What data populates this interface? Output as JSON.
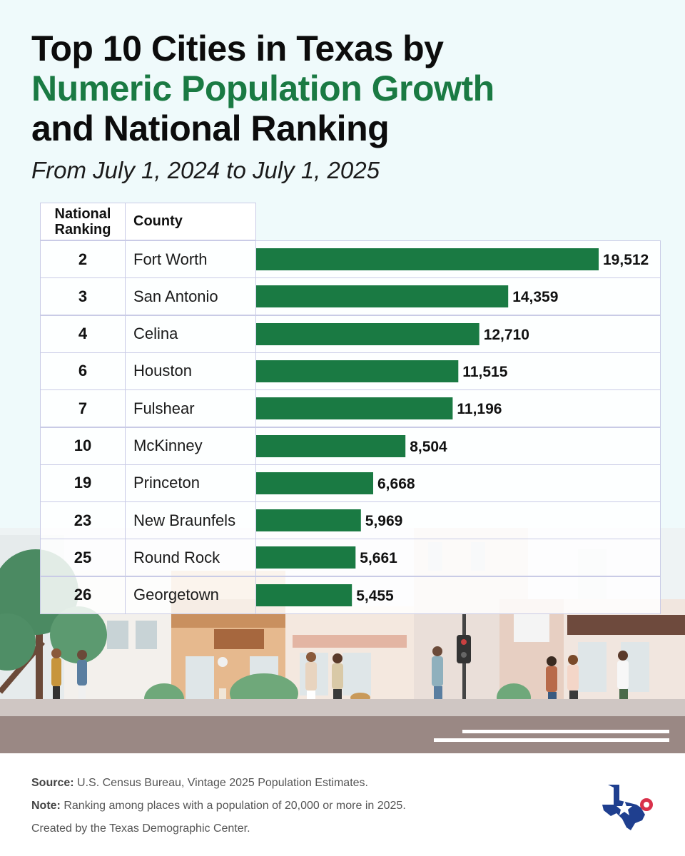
{
  "header": {
    "title_line1": "Top 10 Cities in Texas by",
    "title_line2": "Numeric Population Growth",
    "title_line3": "and National Ranking",
    "subtitle": "From July 1, 2024 to July 1, 2025"
  },
  "table": {
    "col_rank_header": "National Ranking",
    "col_county_header": "County"
  },
  "chart_data": {
    "type": "bar",
    "orientation": "horizontal",
    "title": "Top 10 Cities in Texas by Numeric Population Growth and National Ranking",
    "subtitle": "From July 1, 2024 to July 1, 2025",
    "categories": [
      "Fort Worth",
      "San Antonio",
      "Celina",
      "Houston",
      "Fulshear",
      "McKinney",
      "Princeton",
      "New Braunfels",
      "Round Rock",
      "Georgetown"
    ],
    "national_ranking": [
      "2",
      "3",
      "4",
      "6",
      "7",
      "10",
      "19",
      "23",
      "25",
      "26"
    ],
    "values": [
      19512,
      14359,
      12710,
      11515,
      11196,
      8504,
      6668,
      5969,
      5661,
      5455
    ],
    "value_labels": [
      "19,512",
      "14,359",
      "12,710",
      "11,515",
      "11,196",
      "8,504",
      "6,668",
      "5,969",
      "5,661",
      "5,455"
    ],
    "xlim": [
      0,
      19512
    ],
    "bar_color": "#1a7a43",
    "grid": false,
    "legend": "none"
  },
  "footer": {
    "source_label": "Source:",
    "source_text": " U.S. Census Bureau, Vintage 2025 Population Estimates.",
    "note_label": "Note:",
    "note_text": " Ranking among places with a population of 20,000 or more in 2025.",
    "credit": "Created by the Texas Demographic Center."
  },
  "colors": {
    "accent_green": "#1a7a43",
    "background": "#effafb",
    "logo_blue": "#1f3f8f",
    "logo_red": "#d9304a"
  },
  "icons": {
    "logo": "texas-map-star-icon"
  }
}
